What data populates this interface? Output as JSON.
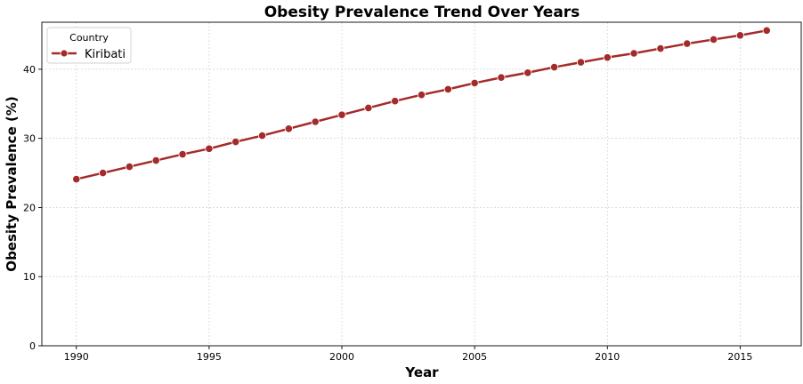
{
  "chart_data": {
    "type": "line",
    "title": "Obesity Prevalence Trend Over Years",
    "xlabel": "Year",
    "ylabel": "Obesity Prevalence (%)",
    "xlim": [
      1988.7,
      2017.3
    ],
    "ylim": [
      0,
      46.8
    ],
    "xticks": [
      1990,
      1995,
      2000,
      2005,
      2010,
      2015
    ],
    "yticks": [
      0,
      10,
      20,
      30,
      40
    ],
    "grid": true,
    "legend": {
      "title": "Country",
      "placement": "top-left"
    },
    "series": [
      {
        "name": "Kiribati",
        "color": "#a52a2a",
        "x": [
          1990,
          1991,
          1992,
          1993,
          1994,
          1995,
          1996,
          1997,
          1998,
          1999,
          2000,
          2001,
          2002,
          2003,
          2004,
          2005,
          2006,
          2007,
          2008,
          2009,
          2010,
          2011,
          2012,
          2013,
          2014,
          2015,
          2016
        ],
        "y": [
          24.1,
          25.0,
          25.9,
          26.8,
          27.7,
          28.5,
          29.5,
          30.4,
          31.4,
          32.4,
          33.4,
          34.4,
          35.4,
          36.3,
          37.1,
          38.0,
          38.8,
          39.5,
          40.3,
          41.0,
          41.7,
          42.3,
          43.0,
          43.7,
          44.3,
          44.9,
          45.6
        ]
      }
    ]
  }
}
